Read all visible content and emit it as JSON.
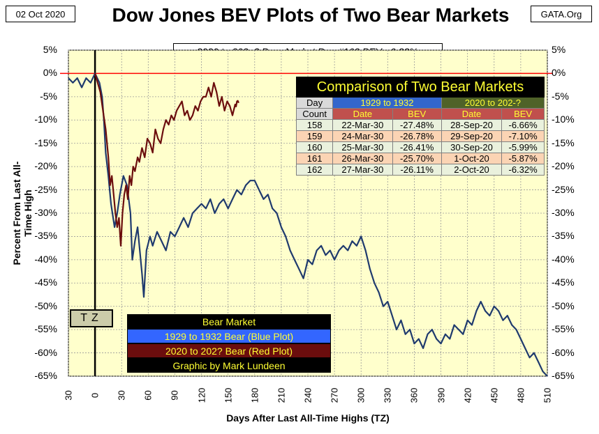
{
  "header": {
    "date": "02 Oct 2020",
    "title": "Dow Jones BEV Plots of Two Bear Markets",
    "source": "GATA.Org",
    "subtitle": "2020 to 202_? Bear Market Day #162 BEV: -6.32%"
  },
  "colors": {
    "plot_bg": "#ffffcc",
    "blue": "#1f3a6e",
    "red": "#6b0d0d",
    "zero": "#ff0000"
  },
  "chart_data": {
    "type": "line",
    "title": "Dow Jones BEV Plots of Two Bear Markets",
    "xlabel": "Days After Last All-Time Highs (TZ)",
    "ylabel": "Percent From Last All-Time High",
    "xlim": [
      -30,
      510
    ],
    "ylim": [
      -65,
      5
    ],
    "x_ticks": [
      "30",
      "0",
      "30",
      "60",
      "90",
      "120",
      "150",
      "180",
      "210",
      "240",
      "270",
      "300",
      "330",
      "360",
      "390",
      "420",
      "450",
      "480",
      "510"
    ],
    "y_ticks": [
      "5%",
      "0%",
      "-5%",
      "-10%",
      "-15%",
      "-20%",
      "-25%",
      "-30%",
      "-35%",
      "-40%",
      "-45%",
      "-50%",
      "-55%",
      "-60%",
      "-65%"
    ],
    "grid": true,
    "series": [
      {
        "name": "1929 to 1932 Bear (Blue Plot)",
        "color": "#1f3a6e",
        "points": [
          [
            -30,
            -1
          ],
          [
            -25,
            -2
          ],
          [
            -20,
            -1
          ],
          [
            -15,
            -3
          ],
          [
            -10,
            -1
          ],
          [
            -5,
            -2
          ],
          [
            0,
            0
          ],
          [
            5,
            -2
          ],
          [
            8,
            -5
          ],
          [
            10,
            -10
          ],
          [
            12,
            -17
          ],
          [
            15,
            -22
          ],
          [
            18,
            -28
          ],
          [
            22,
            -33
          ],
          [
            25,
            -30
          ],
          [
            28,
            -26
          ],
          [
            32,
            -22
          ],
          [
            36,
            -24
          ],
          [
            40,
            -30
          ],
          [
            42,
            -40
          ],
          [
            45,
            -36
          ],
          [
            48,
            -33
          ],
          [
            50,
            -37
          ],
          [
            53,
            -43
          ],
          [
            55,
            -48
          ],
          [
            58,
            -38
          ],
          [
            62,
            -35
          ],
          [
            65,
            -37
          ],
          [
            70,
            -34
          ],
          [
            75,
            -36
          ],
          [
            80,
            -38
          ],
          [
            85,
            -34
          ],
          [
            90,
            -35
          ],
          [
            95,
            -33
          ],
          [
            100,
            -31
          ],
          [
            105,
            -33
          ],
          [
            110,
            -30
          ],
          [
            115,
            -29
          ],
          [
            120,
            -28
          ],
          [
            125,
            -29
          ],
          [
            130,
            -27
          ],
          [
            135,
            -30
          ],
          [
            140,
            -28
          ],
          [
            145,
            -27
          ],
          [
            150,
            -29
          ],
          [
            155,
            -27
          ],
          [
            160,
            -25
          ],
          [
            165,
            -26
          ],
          [
            170,
            -24
          ],
          [
            175,
            -23
          ],
          [
            180,
            -23
          ],
          [
            185,
            -25
          ],
          [
            190,
            -27
          ],
          [
            195,
            -26
          ],
          [
            200,
            -29
          ],
          [
            205,
            -30
          ],
          [
            210,
            -33
          ],
          [
            215,
            -35
          ],
          [
            220,
            -38
          ],
          [
            225,
            -40
          ],
          [
            230,
            -42
          ],
          [
            235,
            -44
          ],
          [
            240,
            -40
          ],
          [
            245,
            -41
          ],
          [
            250,
            -38
          ],
          [
            255,
            -37
          ],
          [
            260,
            -39
          ],
          [
            265,
            -38
          ],
          [
            270,
            -40
          ],
          [
            275,
            -38
          ],
          [
            280,
            -37
          ],
          [
            285,
            -38
          ],
          [
            290,
            -36
          ],
          [
            295,
            -37
          ],
          [
            300,
            -35
          ],
          [
            305,
            -38
          ],
          [
            310,
            -42
          ],
          [
            315,
            -45
          ],
          [
            320,
            -47
          ],
          [
            325,
            -50
          ],
          [
            330,
            -49
          ],
          [
            335,
            -52
          ],
          [
            340,
            -55
          ],
          [
            345,
            -53
          ],
          [
            350,
            -56
          ],
          [
            355,
            -55
          ],
          [
            360,
            -58
          ],
          [
            365,
            -57
          ],
          [
            370,
            -59
          ],
          [
            375,
            -56
          ],
          [
            380,
            -55
          ],
          [
            385,
            -57
          ],
          [
            390,
            -58
          ],
          [
            395,
            -56
          ],
          [
            400,
            -57
          ],
          [
            405,
            -54
          ],
          [
            410,
            -55
          ],
          [
            415,
            -56
          ],
          [
            420,
            -53
          ],
          [
            425,
            -54
          ],
          [
            430,
            -51
          ],
          [
            435,
            -49
          ],
          [
            440,
            -51
          ],
          [
            445,
            -52
          ],
          [
            450,
            -50
          ],
          [
            455,
            -51
          ],
          [
            460,
            -53
          ],
          [
            465,
            -52
          ],
          [
            470,
            -54
          ],
          [
            475,
            -55
          ],
          [
            480,
            -57
          ],
          [
            485,
            -59
          ],
          [
            490,
            -61
          ],
          [
            495,
            -60
          ],
          [
            500,
            -62
          ],
          [
            505,
            -64
          ],
          [
            510,
            -65
          ]
        ]
      },
      {
        "name": "2020 to 202? Bear (Red Plot)",
        "color": "#6b0d0d",
        "points": [
          [
            0,
            0
          ],
          [
            3,
            -2
          ],
          [
            6,
            -4
          ],
          [
            9,
            -8
          ],
          [
            12,
            -12
          ],
          [
            15,
            -18
          ],
          [
            17,
            -24
          ],
          [
            19,
            -22
          ],
          [
            21,
            -26
          ],
          [
            23,
            -30
          ],
          [
            25,
            -33
          ],
          [
            27,
            -31
          ],
          [
            29,
            -37
          ],
          [
            31,
            -30
          ],
          [
            33,
            -26
          ],
          [
            35,
            -24
          ],
          [
            37,
            -27
          ],
          [
            39,
            -22
          ],
          [
            41,
            -24
          ],
          [
            43,
            -20
          ],
          [
            45,
            -21
          ],
          [
            48,
            -18
          ],
          [
            50,
            -19
          ],
          [
            53,
            -16
          ],
          [
            56,
            -18
          ],
          [
            59,
            -14
          ],
          [
            62,
            -15
          ],
          [
            65,
            -17
          ],
          [
            68,
            -12
          ],
          [
            71,
            -14
          ],
          [
            74,
            -15
          ],
          [
            77,
            -12
          ],
          [
            80,
            -10
          ],
          [
            83,
            -11
          ],
          [
            86,
            -9
          ],
          [
            89,
            -10
          ],
          [
            92,
            -8
          ],
          [
            95,
            -7
          ],
          [
            98,
            -6
          ],
          [
            101,
            -9
          ],
          [
            104,
            -8
          ],
          [
            107,
            -10
          ],
          [
            110,
            -9
          ],
          [
            113,
            -7
          ],
          [
            116,
            -8
          ],
          [
            119,
            -6
          ],
          [
            122,
            -5
          ],
          [
            125,
            -5
          ],
          [
            128,
            -3
          ],
          [
            131,
            -5
          ],
          [
            134,
            -2
          ],
          [
            137,
            -4
          ],
          [
            140,
            -7
          ],
          [
            143,
            -5
          ],
          [
            146,
            -8
          ],
          [
            149,
            -6
          ],
          [
            152,
            -7
          ],
          [
            155,
            -9
          ],
          [
            158,
            -6.66
          ],
          [
            159,
            -7.1
          ],
          [
            160,
            -5.99
          ],
          [
            161,
            -5.87
          ],
          [
            162,
            -6.32
          ]
        ]
      }
    ]
  },
  "table": {
    "title": "Comparison of Two Bear Markets",
    "header_day": "Day",
    "header_count": "Count",
    "group1": "1929 to 1932",
    "group2": "2020 to 202-?",
    "col_date": "Date",
    "col_bev": "BEV",
    "rows": [
      {
        "day": "158",
        "d1": "22-Mar-30",
        "b1": "-27.48%",
        "d2": "28-Sep-20",
        "b2": "-6.66%"
      },
      {
        "day": "159",
        "d1": "24-Mar-30",
        "b1": "-26.78%",
        "d2": "29-Sep-20",
        "b2": "-7.10%"
      },
      {
        "day": "160",
        "d1": "25-Mar-30",
        "b1": "-26.41%",
        "d2": "30-Sep-20",
        "b2": "-5.99%"
      },
      {
        "day": "161",
        "d1": "26-Mar-30",
        "b1": "-25.70%",
        "d2": "1-Oct-20",
        "b2": "-5.87%"
      },
      {
        "day": "162",
        "d1": "27-Mar-30",
        "b1": "-26.11%",
        "d2": "2-Oct-20",
        "b2": "-6.32%"
      }
    ]
  },
  "legend": {
    "title": "Bear Market",
    "blue": "1929 to 1932 Bear (Blue Plot)",
    "red": "2020 to 202? Bear (Red Plot)",
    "credit": "Graphic by Mark Lundeen"
  },
  "tz_label": "TZ"
}
